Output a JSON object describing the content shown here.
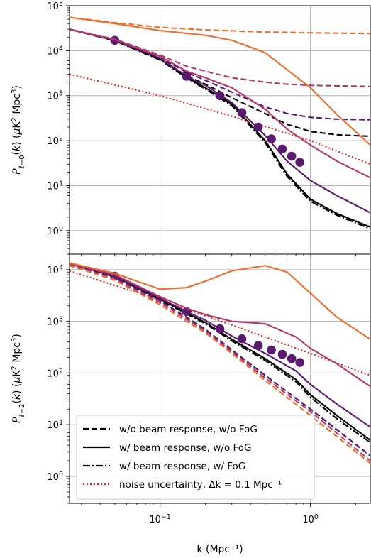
{
  "figure": {
    "xlabel": "k (Mpc⁻¹)",
    "top_ylabel": "P_{ℓ=0}(k) (μK² Mpc³)",
    "bottom_ylabel": "P_{ℓ=2}(k) (μK² Mpc³)",
    "legend_items": [
      {
        "style": "dashed",
        "color": "#000000",
        "label": "w/o beam response, w/o FoG"
      },
      {
        "style": "solid",
        "color": "#000000",
        "label": "w/ beam response, w/o FoG"
      },
      {
        "style": "dashdot",
        "color": "#000000",
        "label": "w/ beam response, w/ FoG"
      },
      {
        "style": "dotted",
        "color": "#e31a1c",
        "label": "noise uncertainty, Δk = 0.1 Mpc⁻¹"
      }
    ]
  },
  "chart_data": [
    {
      "type": "line",
      "panel": "top",
      "ylabel": "P_{ℓ=0}(k) (μK² Mpc³)",
      "xscale": "log",
      "yscale": "log",
      "xlim": [
        0.025,
        2.5
      ],
      "ylim": [
        0.3,
        100000
      ],
      "grid": true,
      "x_ticks": [
        "10⁻¹",
        "10⁰"
      ],
      "y_ticks": [
        "10⁰",
        "10¹",
        "10²",
        "10³",
        "10⁴",
        "10⁵"
      ],
      "series": [
        {
          "color": "#000000",
          "style": "dashed",
          "x": [
            0.025,
            0.05,
            0.1,
            0.15,
            0.2,
            0.3,
            0.5,
            0.7,
            1.0,
            1.5,
            2.5
          ],
          "y": [
            30000,
            17000,
            6500,
            2800,
            1800,
            900,
            400,
            230,
            160,
            135,
            125
          ]
        },
        {
          "color": "#000000",
          "style": "solid",
          "x": [
            0.025,
            0.05,
            0.1,
            0.15,
            0.2,
            0.3,
            0.5,
            0.7,
            1.0,
            1.5,
            2.5
          ],
          "y": [
            30000,
            17000,
            6500,
            2600,
            1500,
            650,
            100,
            18,
            5,
            2.4,
            1.2
          ]
        },
        {
          "color": "#000000",
          "style": "dashdot",
          "x": [
            0.025,
            0.05,
            0.1,
            0.15,
            0.2,
            0.3,
            0.5,
            0.7,
            1.0,
            1.5,
            2.5
          ],
          "y": [
            30000,
            16500,
            6200,
            2500,
            1400,
            600,
            90,
            16,
            4.5,
            2.2,
            1.1
          ]
        },
        {
          "color": "#e31a1c",
          "style": "dotted",
          "x": [
            0.025,
            0.1,
            0.3,
            1.0,
            2.5
          ],
          "y": [
            3000,
            1000,
            350,
            100,
            30
          ]
        },
        {
          "color": "#5a1a6e",
          "style": "dashed",
          "x": [
            0.025,
            0.05,
            0.1,
            0.15,
            0.2,
            0.3,
            0.5,
            0.7,
            1.0,
            1.5,
            2.5
          ],
          "y": [
            30000,
            17000,
            7000,
            3300,
            2200,
            1200,
            560,
            400,
            330,
            300,
            290
          ]
        },
        {
          "color": "#5a1a6e",
          "style": "solid",
          "x": [
            0.025,
            0.05,
            0.1,
            0.15,
            0.2,
            0.3,
            0.5,
            0.7,
            1.0,
            1.5,
            2.5
          ],
          "y": [
            30000,
            17000,
            6800,
            2700,
            1700,
            700,
            130,
            35,
            13,
            6,
            2.5
          ]
        },
        {
          "color": "#5a1a6e",
          "style": "markers",
          "x": [
            0.05,
            0.15,
            0.25,
            0.35,
            0.45,
            0.55,
            0.65,
            0.75,
            0.85
          ],
          "y": [
            17000,
            2700,
            1000,
            420,
            200,
            110,
            65,
            45,
            33
          ]
        },
        {
          "color": "#b5366b",
          "style": "dashed",
          "x": [
            0.025,
            0.05,
            0.1,
            0.15,
            0.2,
            0.3,
            0.5,
            0.7,
            1.0,
            1.5,
            2.5
          ],
          "y": [
            30000,
            18000,
            8000,
            4500,
            3500,
            2500,
            2000,
            1800,
            1700,
            1650,
            1600
          ]
        },
        {
          "color": "#b5366b",
          "style": "solid",
          "x": [
            0.025,
            0.05,
            0.1,
            0.15,
            0.2,
            0.3,
            0.5,
            0.7,
            1.0,
            1.5,
            2.5
          ],
          "y": [
            30000,
            17500,
            7500,
            3500,
            2500,
            1500,
            500,
            180,
            80,
            35,
            15
          ]
        },
        {
          "color": "#f06c2a",
          "style": "dashed",
          "x": [
            0.025,
            0.05,
            0.1,
            0.2,
            0.5,
            1.0,
            2.5
          ],
          "y": [
            55000,
            42000,
            33000,
            29000,
            26000,
            25000,
            24000
          ]
        },
        {
          "color": "#f06c2a",
          "style": "solid",
          "x": [
            0.025,
            0.05,
            0.1,
            0.2,
            0.3,
            0.5,
            1.0,
            1.5,
            2.5
          ],
          "y": [
            55000,
            40000,
            28000,
            22000,
            17000,
            9000,
            1500,
            380,
            80
          ]
        }
      ]
    },
    {
      "type": "line",
      "panel": "bottom",
      "ylabel": "P_{ℓ=2}(k) (μK² Mpc³)",
      "xlabel": "k (Mpc⁻¹)",
      "xscale": "log",
      "yscale": "log",
      "xlim": [
        0.025,
        2.5
      ],
      "ylim": [
        0.3,
        20000
      ],
      "grid": true,
      "x_ticks": [
        "10⁻¹",
        "10⁰"
      ],
      "y_ticks": [
        "10⁰",
        "10¹",
        "10²",
        "10³",
        "10⁴"
      ],
      "series": [
        {
          "color": "#000000",
          "style": "dashed",
          "x": [
            0.025,
            0.05,
            0.1,
            0.15,
            0.2,
            0.3,
            0.5,
            1.0,
            2.5
          ],
          "y": [
            13000,
            7000,
            2500,
            1200,
            700,
            280,
            90,
            20,
            2.5
          ]
        },
        {
          "color": "#000000",
          "style": "solid",
          "x": [
            0.025,
            0.05,
            0.1,
            0.15,
            0.2,
            0.3,
            0.5,
            0.8,
            1.0,
            1.5,
            2.5
          ],
          "y": [
            13000,
            7500,
            2700,
            1450,
            950,
            450,
            190,
            75,
            38,
            15,
            5
          ]
        },
        {
          "color": "#000000",
          "style": "dashdot",
          "x": [
            0.025,
            0.05,
            0.1,
            0.15,
            0.2,
            0.3,
            0.5,
            0.8,
            1.0,
            1.5,
            2.5
          ],
          "y": [
            13000,
            7300,
            2600,
            1400,
            900,
            420,
            175,
            68,
            34,
            13,
            4.5
          ]
        },
        {
          "color": "#e31a1c",
          "style": "dotted",
          "x": [
            0.025,
            0.1,
            0.3,
            1.0,
            2.5
          ],
          "y": [
            9500,
            2600,
            850,
            240,
            90
          ]
        },
        {
          "color": "#5a1a6e",
          "style": "dashed",
          "x": [
            0.025,
            0.05,
            0.1,
            0.15,
            0.2,
            0.3,
            0.5,
            1.0,
            2.5
          ],
          "y": [
            13000,
            7000,
            2500,
            1200,
            700,
            280,
            90,
            20,
            2.5
          ]
        },
        {
          "color": "#5a1a6e",
          "style": "solid",
          "x": [
            0.025,
            0.05,
            0.1,
            0.15,
            0.2,
            0.3,
            0.5,
            0.8,
            1.0,
            1.5,
            2.5
          ],
          "y": [
            13000,
            7500,
            2800,
            1550,
            1050,
            520,
            240,
            110,
            60,
            25,
            9
          ]
        },
        {
          "color": "#5a1a6e",
          "style": "markers",
          "x": [
            0.05,
            0.15,
            0.25,
            0.35,
            0.45,
            0.55,
            0.65,
            0.75,
            0.85
          ],
          "y": [
            7500,
            1550,
            720,
            460,
            340,
            280,
            230,
            190,
            160
          ]
        },
        {
          "color": "#b5366b",
          "style": "dashed",
          "x": [
            0.025,
            0.05,
            0.1,
            0.15,
            0.2,
            0.3,
            0.5,
            1.0,
            2.5
          ],
          "y": [
            12000,
            6500,
            2300,
            1100,
            650,
            260,
            80,
            18,
            2
          ]
        },
        {
          "color": "#b5366b",
          "style": "solid",
          "x": [
            0.025,
            0.05,
            0.1,
            0.15,
            0.2,
            0.3,
            0.5,
            0.8,
            1.0,
            1.5,
            2.5
          ],
          "y": [
            13000,
            8000,
            3000,
            1800,
            1350,
            1000,
            900,
            500,
            300,
            150,
            55
          ]
        },
        {
          "color": "#f06c2a",
          "style": "dashed",
          "x": [
            0.025,
            0.05,
            0.1,
            0.15,
            0.2,
            0.3,
            0.5,
            1.0,
            2.5
          ],
          "y": [
            12000,
            6300,
            2100,
            1000,
            600,
            240,
            72,
            15,
            1.8
          ]
        },
        {
          "color": "#f06c2a",
          "style": "solid",
          "x": [
            0.025,
            0.05,
            0.07,
            0.1,
            0.15,
            0.2,
            0.3,
            0.5,
            0.7,
            1.0,
            1.5,
            2.5
          ],
          "y": [
            13500,
            8500,
            6000,
            4200,
            4500,
            6000,
            9500,
            12000,
            9000,
            3500,
            1200,
            450
          ]
        }
      ]
    }
  ]
}
